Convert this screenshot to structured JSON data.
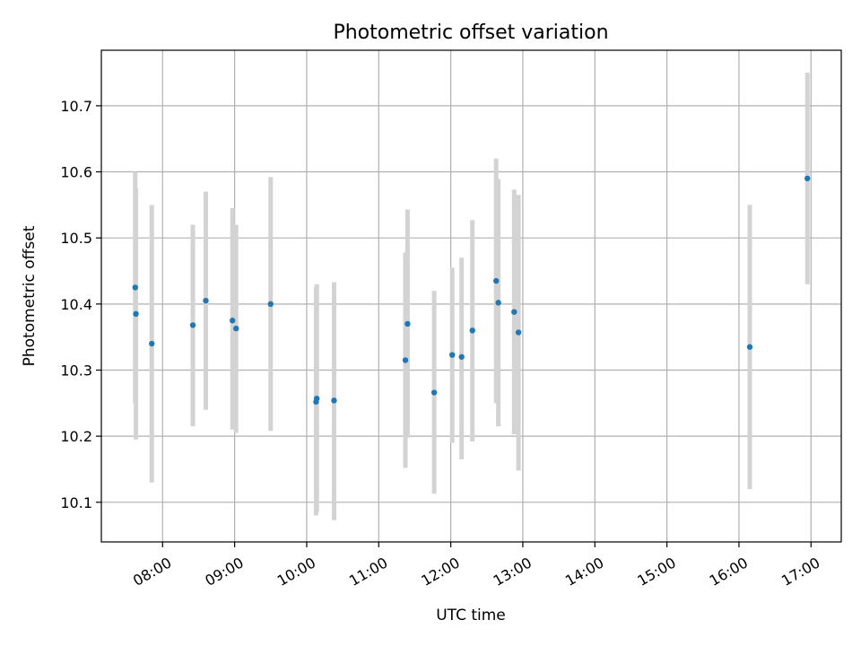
{
  "chart_data": {
    "type": "scatter",
    "title": "Photometric offset variation",
    "xlabel": "UTC time",
    "ylabel": "Photometric offset",
    "x_tick_labels": [
      "08:00",
      "09:00",
      "10:00",
      "11:00",
      "12:00",
      "13:00",
      "14:00",
      "15:00",
      "16:00",
      "17:00"
    ],
    "x_tick_hours": [
      8,
      9,
      10,
      11,
      12,
      13,
      14,
      15,
      16,
      17
    ],
    "y_ticks": [
      10.1,
      10.2,
      10.3,
      10.4,
      10.5,
      10.6,
      10.7
    ],
    "y_tick_labels": [
      "10.1",
      "10.2",
      "10.3",
      "10.4",
      "10.5",
      "10.6",
      "10.7"
    ],
    "xlim_hours": [
      7.15,
      17.42
    ],
    "ylim": [
      10.04,
      10.784
    ],
    "grid": true,
    "colors": {
      "point": "#1f77b4",
      "errorbar": "#d3d3d3",
      "grid": "#b0b0b0"
    },
    "points": [
      {
        "hour": 7.62,
        "y": 10.425,
        "ylo": 10.25,
        "yhi": 10.6
      },
      {
        "hour": 7.63,
        "y": 10.385,
        "ylo": 10.195,
        "yhi": 10.575
      },
      {
        "hour": 7.85,
        "y": 10.34,
        "ylo": 10.13,
        "yhi": 10.55
      },
      {
        "hour": 8.42,
        "y": 10.368,
        "ylo": 10.215,
        "yhi": 10.52
      },
      {
        "hour": 8.6,
        "y": 10.405,
        "ylo": 10.24,
        "yhi": 10.57
      },
      {
        "hour": 8.97,
        "y": 10.375,
        "ylo": 10.21,
        "yhi": 10.545
      },
      {
        "hour": 9.02,
        "y": 10.363,
        "ylo": 10.205,
        "yhi": 10.52
      },
      {
        "hour": 9.5,
        "y": 10.4,
        "ylo": 10.208,
        "yhi": 10.592
      },
      {
        "hour": 10.13,
        "y": 10.252,
        "ylo": 10.08,
        "yhi": 10.425
      },
      {
        "hour": 10.14,
        "y": 10.257,
        "ylo": 10.085,
        "yhi": 10.43
      },
      {
        "hour": 10.38,
        "y": 10.254,
        "ylo": 10.073,
        "yhi": 10.433
      },
      {
        "hour": 11.37,
        "y": 10.315,
        "ylo": 10.152,
        "yhi": 10.478
      },
      {
        "hour": 11.4,
        "y": 10.37,
        "ylo": 10.198,
        "yhi": 10.543
      },
      {
        "hour": 11.77,
        "y": 10.266,
        "ylo": 10.113,
        "yhi": 10.42
      },
      {
        "hour": 12.02,
        "y": 10.323,
        "ylo": 10.19,
        "yhi": 10.455
      },
      {
        "hour": 12.15,
        "y": 10.32,
        "ylo": 10.165,
        "yhi": 10.47
      },
      {
        "hour": 12.3,
        "y": 10.36,
        "ylo": 10.192,
        "yhi": 10.527
      },
      {
        "hour": 12.63,
        "y": 10.435,
        "ylo": 10.25,
        "yhi": 10.62
      },
      {
        "hour": 12.66,
        "y": 10.402,
        "ylo": 10.215,
        "yhi": 10.589
      },
      {
        "hour": 12.88,
        "y": 10.388,
        "ylo": 10.203,
        "yhi": 10.573
      },
      {
        "hour": 12.94,
        "y": 10.357,
        "ylo": 10.148,
        "yhi": 10.565
      },
      {
        "hour": 16.15,
        "y": 10.335,
        "ylo": 10.12,
        "yhi": 10.55
      },
      {
        "hour": 16.95,
        "y": 10.59,
        "ylo": 10.43,
        "yhi": 10.75
      }
    ]
  }
}
